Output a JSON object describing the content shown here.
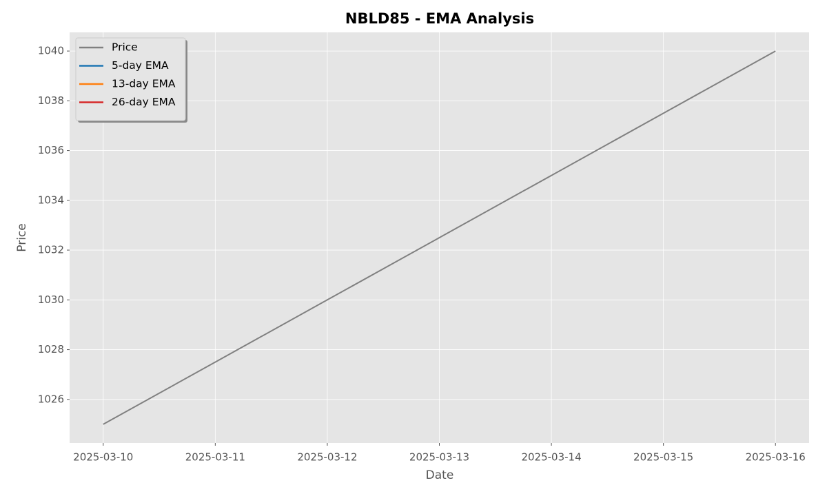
{
  "chart_data": {
    "type": "line",
    "title": "NBLD85 - EMA Analysis",
    "x_label": "Date",
    "y_label": "Price",
    "x": [
      "2025-03-10",
      "2025-03-11",
      "2025-03-12",
      "2025-03-13",
      "2025-03-14",
      "2025-03-15",
      "2025-03-16"
    ],
    "series": [
      {
        "name": "Price",
        "color": "#808080",
        "values": [
          1025,
          1027.5,
          1030,
          1032.5,
          1035,
          1037.5,
          1040
        ]
      },
      {
        "name": "5-day EMA",
        "color": "#1f77b4",
        "values": [
          null,
          null,
          null,
          null,
          null,
          null,
          null
        ]
      },
      {
        "name": "13-day EMA",
        "color": "#ff7f0e",
        "values": [
          null,
          null,
          null,
          null,
          null,
          null,
          null
        ]
      },
      {
        "name": "26-day EMA",
        "color": "#d62728",
        "values": [
          null,
          null,
          null,
          null,
          null,
          null,
          null
        ]
      }
    ],
    "xlim": [
      "2025-03-09T16:48:00Z",
      "2025-03-16T07:12:00Z"
    ],
    "xticks": [
      "2025-03-10",
      "2025-03-11",
      "2025-03-12",
      "2025-03-13",
      "2025-03-14",
      "2025-03-15",
      "2025-03-16"
    ],
    "ylim": [
      1024.25,
      1040.75
    ],
    "yticks": [
      1026,
      1028,
      1030,
      1032,
      1034,
      1036,
      1038,
      1040
    ],
    "grid": true,
    "legend": "upper left"
  }
}
